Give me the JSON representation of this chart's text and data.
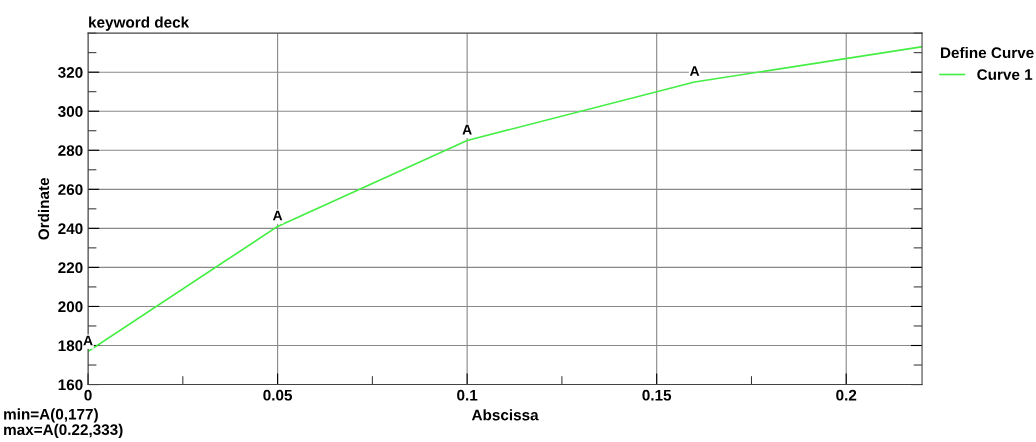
{
  "chart_data": {
    "type": "line",
    "title": "keyword deck",
    "xlabel": "Abscissa",
    "ylabel": "Ordinate",
    "legend_title": "Define Curve",
    "x": [
      0,
      0.05,
      0.1,
      0.16,
      0.22
    ],
    "series": [
      {
        "name": "Curve 1",
        "color": "#44ee44",
        "values": [
          177,
          241,
          285,
          315,
          333
        ]
      }
    ],
    "xlim": [
      0,
      0.22
    ],
    "xticks": [
      0,
      0.05,
      0.1,
      0.15,
      0.2
    ],
    "ylim": [
      160,
      340
    ],
    "yticks": [
      160,
      180,
      200,
      220,
      240,
      260,
      280,
      300,
      320
    ],
    "grid": true,
    "legend": "top right",
    "marker": "none",
    "line_style": "solid",
    "annotations": [
      {
        "text": "A",
        "x": 0,
        "y": 177
      },
      {
        "text": "A",
        "x": 0.05,
        "y": 241
      },
      {
        "text": "A",
        "x": 0.1,
        "y": 285
      },
      {
        "text": "A",
        "x": 0.16,
        "y": 315
      },
      "min=A(0,177)",
      "max=A(0.22,333)"
    ]
  }
}
